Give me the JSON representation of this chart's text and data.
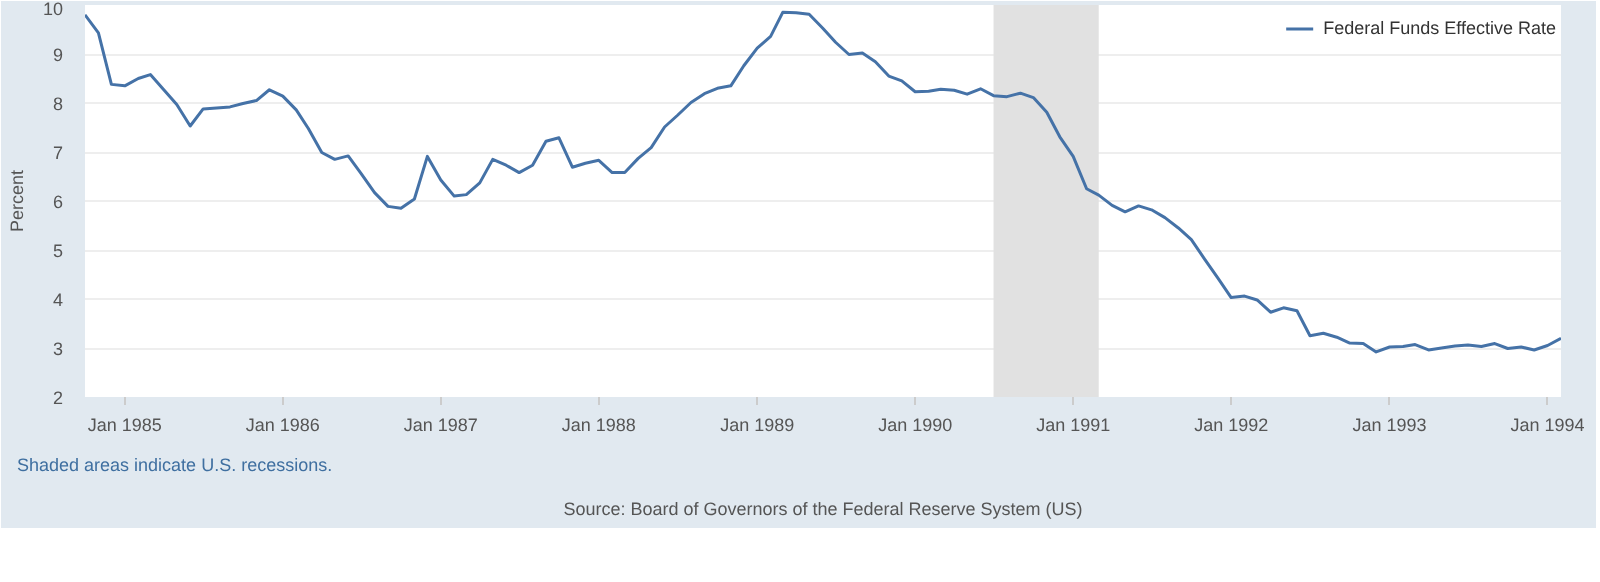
{
  "chart_data": {
    "type": "line",
    "ylabel": "Percent",
    "legend": "top right",
    "grid": "y",
    "x": [
      "1984-10",
      "1984-11",
      "1984-12",
      "1985-01",
      "1985-02",
      "1985-03",
      "1985-04",
      "1985-05",
      "1985-06",
      "1985-07",
      "1985-08",
      "1985-09",
      "1985-10",
      "1985-11",
      "1985-12",
      "1986-01",
      "1986-02",
      "1986-03",
      "1986-04",
      "1986-05",
      "1986-06",
      "1986-07",
      "1986-08",
      "1986-09",
      "1986-10",
      "1986-11",
      "1986-12",
      "1987-01",
      "1987-02",
      "1987-03",
      "1987-04",
      "1987-05",
      "1987-06",
      "1987-07",
      "1987-08",
      "1987-09",
      "1987-10",
      "1987-11",
      "1987-12",
      "1988-01",
      "1988-02",
      "1988-03",
      "1988-04",
      "1988-05",
      "1988-06",
      "1988-07",
      "1988-08",
      "1988-09",
      "1988-10",
      "1988-11",
      "1988-12",
      "1989-01",
      "1989-02",
      "1989-03",
      "1989-04",
      "1989-05",
      "1989-06",
      "1989-07",
      "1989-08",
      "1989-09",
      "1989-10",
      "1989-11",
      "1989-12",
      "1990-01",
      "1990-02",
      "1990-03",
      "1990-04",
      "1990-05",
      "1990-06",
      "1990-07",
      "1990-08",
      "1990-09",
      "1990-10",
      "1990-11",
      "1990-12",
      "1991-01",
      "1991-02",
      "1991-03",
      "1991-04",
      "1991-05",
      "1991-06",
      "1991-07",
      "1991-08",
      "1991-09",
      "1991-10",
      "1991-11",
      "1991-12",
      "1992-01",
      "1992-02",
      "1992-03",
      "1992-04",
      "1992-05",
      "1992-06",
      "1992-07",
      "1992-08",
      "1992-09",
      "1992-10",
      "1992-11",
      "1992-12",
      "1993-01",
      "1993-02",
      "1993-03",
      "1993-04",
      "1993-05",
      "1993-06",
      "1993-07",
      "1993-08",
      "1993-09",
      "1993-10",
      "1993-11",
      "1993-12",
      "1994-01",
      "1994-02"
    ],
    "series": [
      {
        "name": "Federal Funds Effective Rate",
        "color": "#4572a7",
        "values": [
          9.8,
          9.43,
          8.38,
          8.35,
          8.5,
          8.58,
          8.27,
          7.97,
          7.53,
          7.88,
          7.9,
          7.92,
          7.99,
          8.05,
          8.27,
          8.14,
          7.86,
          7.48,
          6.99,
          6.85,
          6.92,
          6.56,
          6.17,
          5.89,
          5.85,
          6.04,
          6.91,
          6.43,
          6.1,
          6.13,
          6.37,
          6.85,
          6.73,
          6.58,
          6.73,
          7.22,
          7.29,
          6.69,
          6.77,
          6.83,
          6.58,
          6.58,
          6.87,
          7.09,
          7.51,
          7.75,
          8.01,
          8.19,
          8.3,
          8.35,
          8.76,
          9.12,
          9.36,
          9.85,
          9.84,
          9.81,
          9.53,
          9.24,
          8.99,
          9.02,
          8.84,
          8.55,
          8.45,
          8.23,
          8.24,
          8.28,
          8.26,
          8.18,
          8.29,
          8.15,
          8.13,
          8.2,
          8.11,
          7.81,
          7.31,
          6.91,
          6.25,
          6.12,
          5.91,
          5.78,
          5.9,
          5.82,
          5.66,
          5.45,
          5.21,
          4.81,
          4.43,
          4.03,
          4.06,
          3.98,
          3.73,
          3.82,
          3.76,
          3.25,
          3.3,
          3.22,
          3.1,
          3.09,
          2.92,
          3.02,
          3.03,
          3.07,
          2.96,
          3.0,
          3.04,
          3.06,
          3.03,
          3.09,
          2.99,
          3.02,
          2.96,
          3.05,
          3.2
        ]
      }
    ],
    "xlim": [
      "1984-10",
      "1994-02"
    ],
    "xticks": [
      {
        "value": "1985-01",
        "label": "Jan 1985"
      },
      {
        "value": "1986-01",
        "label": "Jan 1986"
      },
      {
        "value": "1987-01",
        "label": "Jan 1987"
      },
      {
        "value": "1988-01",
        "label": "Jan 1988"
      },
      {
        "value": "1989-01",
        "label": "Jan 1989"
      },
      {
        "value": "1990-01",
        "label": "Jan 1990"
      },
      {
        "value": "1991-01",
        "label": "Jan 1991"
      },
      {
        "value": "1992-01",
        "label": "Jan 1992"
      },
      {
        "value": "1993-01",
        "label": "Jan 1993"
      },
      {
        "value": "1994-01",
        "label": "Jan 1994"
      }
    ],
    "ylim": [
      2,
      10
    ],
    "yticks": [
      2,
      3,
      4,
      5,
      6,
      7,
      8,
      9,
      10
    ],
    "bands": [
      {
        "axis": "x",
        "from": "1990-07",
        "to": "1991-03",
        "color": "#e1e1e1"
      }
    ],
    "annotations": [
      "Shaded areas indicate U.S. recessions.",
      "Source: Board of Governors of the Federal Reserve System (US)"
    ]
  }
}
